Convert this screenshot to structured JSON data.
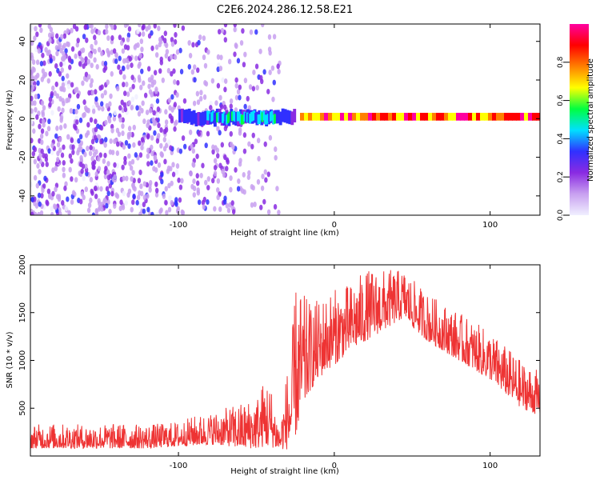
{
  "figure": {
    "title": "C2E6.2024.286.12.58.E21"
  },
  "chart_data": [
    {
      "type": "heatmap",
      "xlabel": "Height of straight line (km)",
      "ylabel": "Frequency (Hz)",
      "xlim": [
        -195,
        132
      ],
      "ylim": [
        -50,
        49
      ],
      "x_ticks": [
        -100,
        0,
        100
      ],
      "y_ticks": [
        -40,
        -20,
        0,
        20,
        40
      ],
      "grid": false,
      "colorbar": {
        "label": "Normalized spectral amplitude",
        "range": [
          0.0,
          1.0
        ],
        "ticks": [
          0.0,
          0.2,
          0.4,
          0.6,
          0.8
        ],
        "colormap": [
          "#f0f0ff",
          "#c8a0f0",
          "#8a2be2",
          "#3030ff",
          "#00e0ff",
          "#00ff40",
          "#ffff00",
          "#ff8000",
          "#ff0000",
          "#ff00a0"
        ]
      },
      "regions": [
        {
          "x": [
            -195,
            -35
          ],
          "freq_band": [
            -50,
            49
          ],
          "amplitude": 0.18,
          "description_level": "noise"
        },
        {
          "x": [
            -100,
            -25
          ],
          "freq_band": [
            -3,
            4
          ],
          "amplitude": 0.35
        },
        {
          "x": [
            -82,
            -38
          ],
          "freq_band": [
            -2,
            3
          ],
          "amplitude": 0.5
        },
        {
          "x": [
            -22,
            132
          ],
          "freq_band": [
            -1,
            3
          ],
          "amplitude": 0.9
        }
      ]
    },
    {
      "type": "line",
      "xlabel": "Height of straight line (km)",
      "ylabel": "SNR (10 * v/v)",
      "xlim": [
        -195,
        132
      ],
      "ylim": [
        0,
        2000
      ],
      "x_ticks": [
        -100,
        0,
        100
      ],
      "y_ticks": [
        500,
        1000,
        1500,
        2000
      ],
      "grid": false,
      "series": [
        {
          "color": "#ee3333",
          "x": [
            -195,
            -180,
            -160,
            -140,
            -120,
            -100,
            -90,
            -80,
            -70,
            -60,
            -50,
            -44,
            -40,
            -35,
            -30,
            -28,
            -25,
            -20,
            -15,
            -10,
            -5,
            0,
            10,
            20,
            30,
            40,
            45,
            50,
            60,
            70,
            80,
            90,
            100,
            110,
            120,
            132
          ],
          "y_low": [
            80,
            80,
            80,
            80,
            80,
            100,
            110,
            120,
            110,
            80,
            80,
            100,
            90,
            70,
            70,
            100,
            200,
            500,
            700,
            800,
            900,
            950,
            1100,
            1200,
            1300,
            1400,
            1450,
            1350,
            1200,
            1100,
            1000,
            900,
            800,
            650,
            500,
            420
          ],
          "y_high": [
            330,
            340,
            330,
            340,
            330,
            360,
            420,
            450,
            500,
            560,
            620,
            850,
            700,
            300,
            950,
            1000,
            1800,
            1700,
            1600,
            1650,
            1700,
            1750,
            1800,
            1950,
            1950,
            1950,
            1950,
            1850,
            1700,
            1600,
            1500,
            1400,
            1300,
            1150,
            1000,
            880
          ]
        }
      ]
    }
  ]
}
